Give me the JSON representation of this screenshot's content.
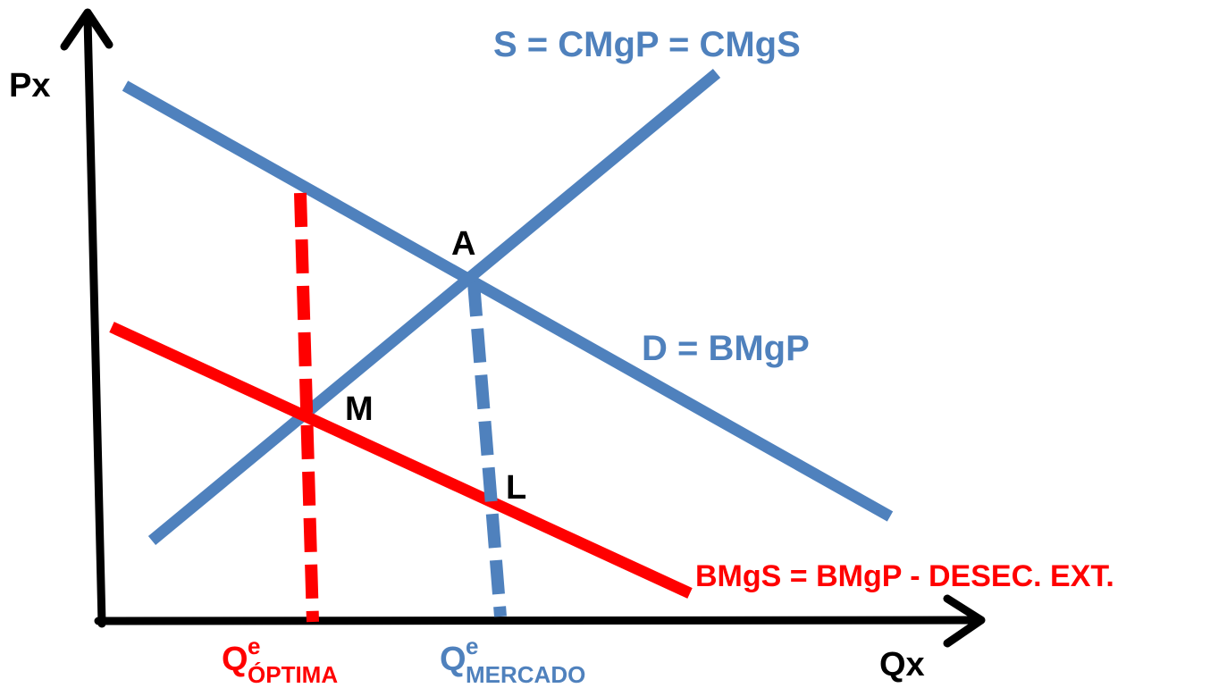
{
  "axes": {
    "y_label": "Px",
    "x_label": "Qx"
  },
  "curves": {
    "supply_label": "S = CMgP = CMgS",
    "demand_label": "D = BMgP",
    "social_benefit_label": "BMgS = BMgP - DESEC. EXT."
  },
  "points": {
    "a": "A",
    "m": "M",
    "l": "L"
  },
  "quantities": {
    "optimal": {
      "base": "Q",
      "sup": "e",
      "sub": "ÓPTIMA"
    },
    "market": {
      "base": "Q",
      "sup": "e",
      "sub": "MERCADO"
    }
  },
  "colors": {
    "axis": "#000000",
    "blue": "#4f81bd",
    "red": "#ff0000",
    "text": "#000000"
  }
}
